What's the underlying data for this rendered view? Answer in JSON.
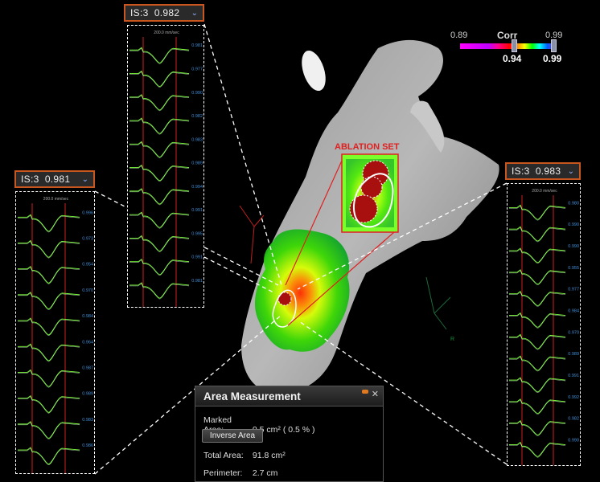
{
  "egm_panels": [
    {
      "id": "left",
      "selector": "IS:3  0.981",
      "scale": "200.0 mm/sec",
      "values": [
        "0.996",
        "0.973",
        "0.954",
        "0.970",
        "0.984",
        "0.964",
        "0.987",
        "0.989",
        "0.983",
        "0.986"
      ]
    },
    {
      "id": "top",
      "selector": "IS:3  0.982",
      "scale": "200.0 mm/sec",
      "values": [
        "0.981",
        "0.977",
        "0.990",
        "0.982",
        "0.983",
        "0.989",
        "0.994",
        "0.991",
        "0.995",
        "0.991",
        "0.981"
      ]
    },
    {
      "id": "right",
      "selector": "IS:3  0.983",
      "scale": "200.0 mm/sec",
      "values": [
        "0.980",
        "0.990",
        "0.990",
        "0.955",
        "0.977",
        "0.984",
        "0.970",
        "0.989",
        "0.991",
        "0.992",
        "0.982",
        "0.990"
      ]
    }
  ],
  "corr_bar": {
    "title": "Corr",
    "min_label": "0.89",
    "max_label": "0.99",
    "low_value": "0.94",
    "high_value": "0.99"
  },
  "ablation_label": "ABLATION SET",
  "area_measurement": {
    "title": "Area Measurement",
    "marked_area_label": "Marked Area:",
    "marked_area_value": "0.5 cm² ( 0.5 % )",
    "inverse_button": "Inverse Area",
    "total_area_label": "Total Area:",
    "total_area_value": "91.8 cm²",
    "perimeter_label": "Perimeter:",
    "perimeter_value": "2.7 cm"
  },
  "misc_labels": {
    "axis_r": "R"
  },
  "colors": {
    "panel_border": "#c8561e",
    "trace": "#7dff3c",
    "marker_line": "#d02020",
    "value_text": "#3f8fd8"
  }
}
